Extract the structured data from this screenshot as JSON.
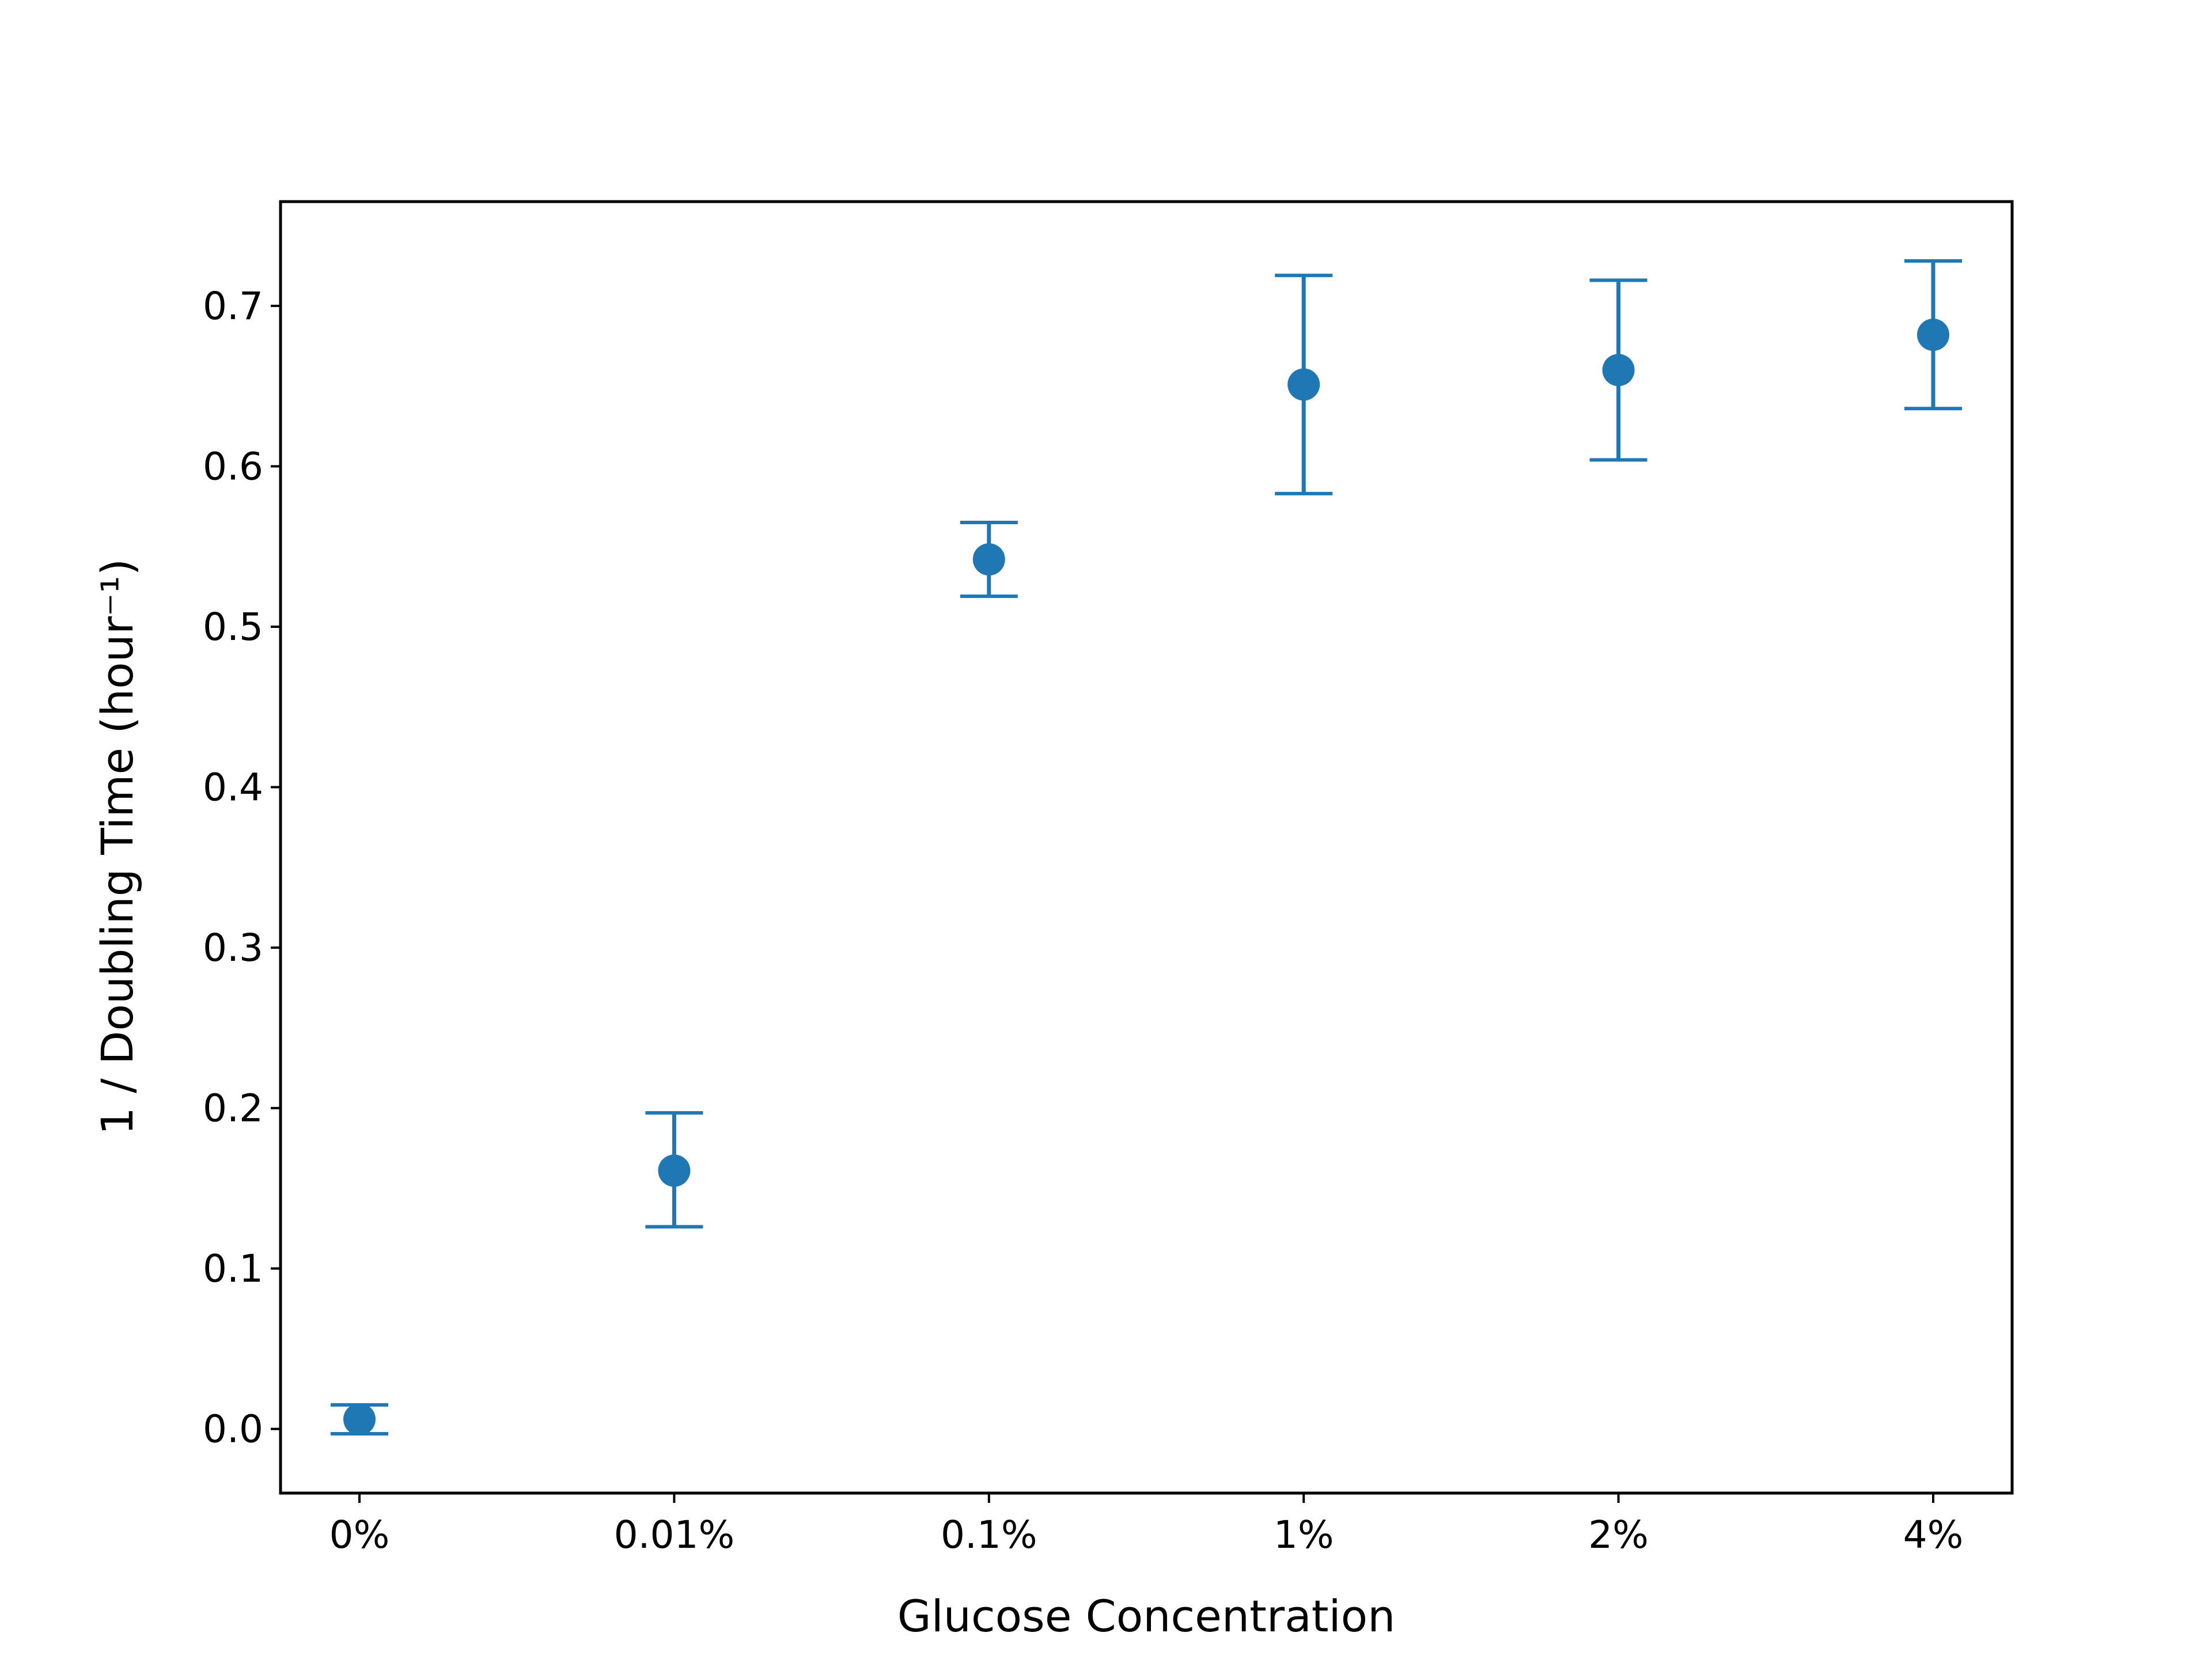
{
  "chart_data": {
    "type": "scatter",
    "title": "",
    "xlabel": "Glucose Concentration",
    "ylabel": "1 / Doubling Time (hour⁻¹)",
    "categories": [
      "0%",
      "0.01%",
      "0.1%",
      "1%",
      "2%",
      "4%"
    ],
    "series": [
      {
        "values": [
          0.006,
          0.161,
          0.542,
          0.651,
          0.66,
          0.682
        ],
        "err_low": [
          -0.003,
          0.126,
          0.519,
          0.583,
          0.604,
          0.636
        ],
        "err_high": [
          0.015,
          0.197,
          0.565,
          0.719,
          0.716,
          0.728
        ]
      }
    ],
    "ylim": [
      -0.04,
      0.765
    ],
    "yticks": [
      "0.0",
      "0.1",
      "0.2",
      "0.3",
      "0.4",
      "0.5",
      "0.6",
      "0.7"
    ],
    "grid": false,
    "legend": "none",
    "color": "#1f77b4"
  }
}
